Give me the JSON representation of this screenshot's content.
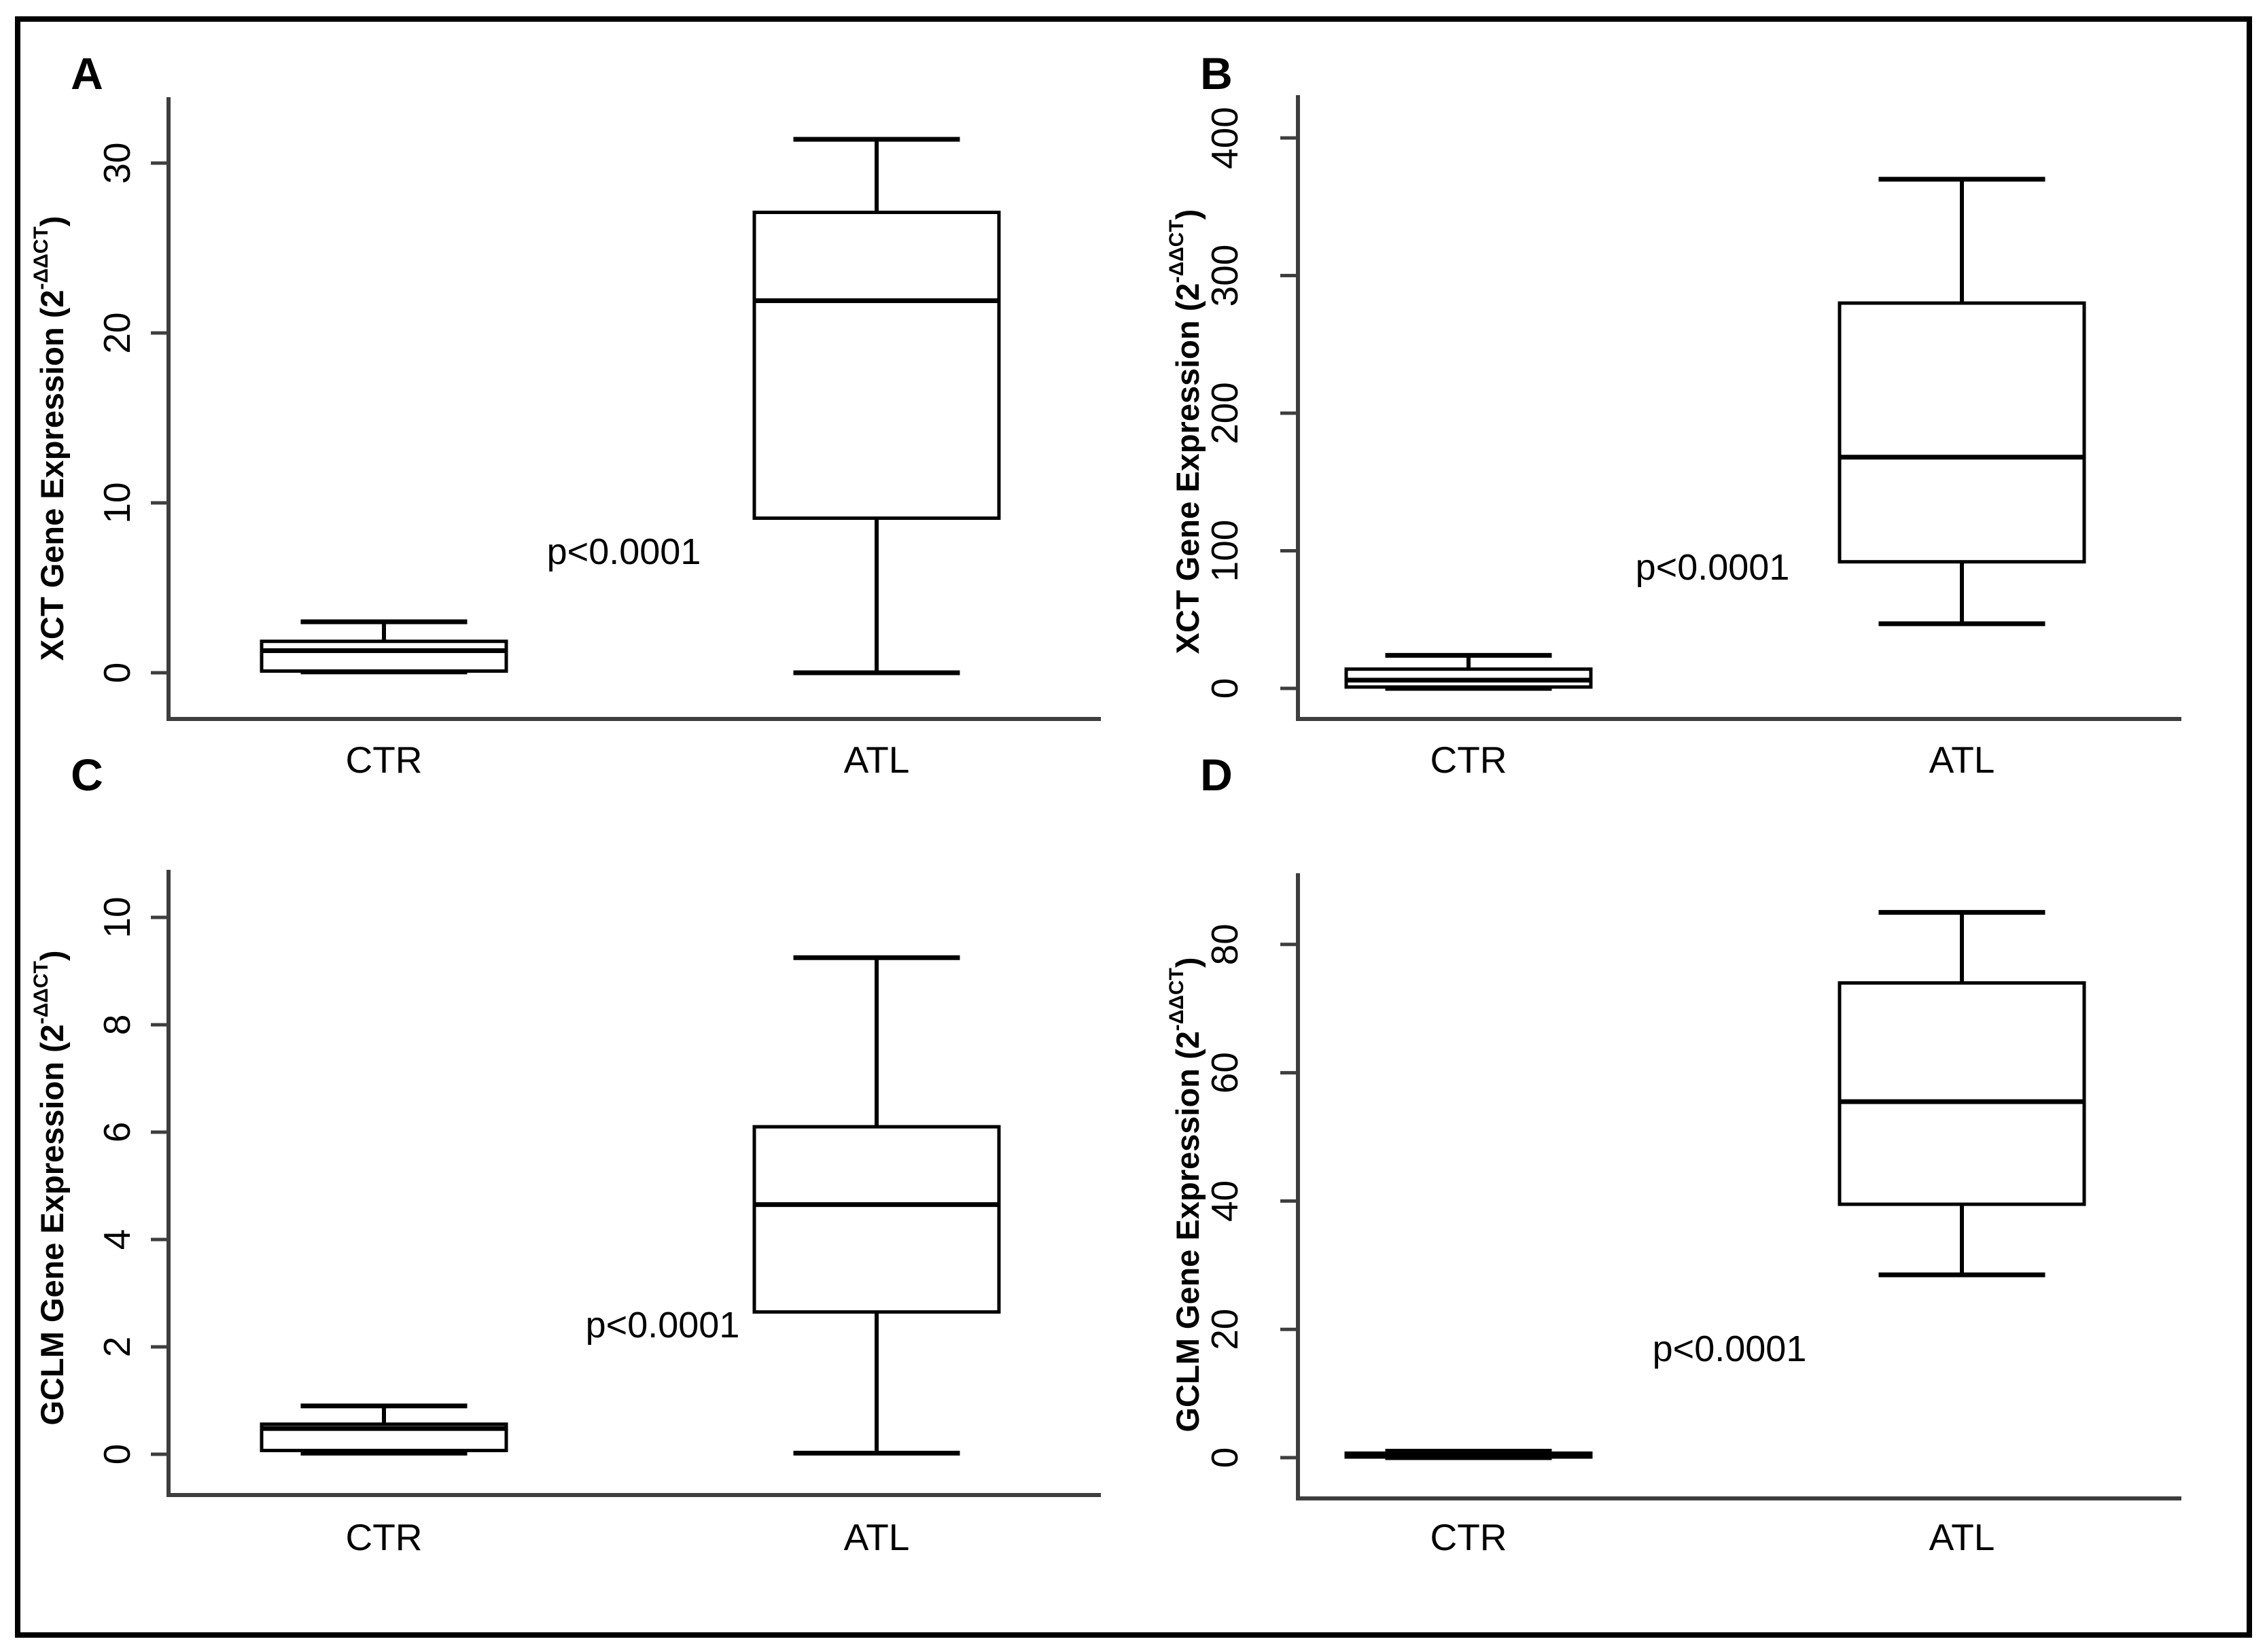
{
  "figure": {
    "background": "#ffffff",
    "border_color": "#000000",
    "axis_color": "#3e3e3e",
    "box_color": "#000000"
  },
  "chart_data": [
    {
      "type": "box",
      "panel": "A",
      "gene": "XCT",
      "ylabel": {
        "text": "XCT Gene Expression (2",
        "sup": "-ΔΔCT",
        "close": ")"
      },
      "categories": [
        "CTR",
        "ATL"
      ],
      "yticks": [
        0,
        10,
        20,
        30
      ],
      "ylim": [
        0,
        34
      ],
      "grid": false,
      "p_label": "p<0.0001",
      "series": [
        {
          "name": "CTR",
          "low": 0.05,
          "q1": 0.1,
          "median": 1.3,
          "q3": 1.85,
          "high": 3.0
        },
        {
          "name": "ATL",
          "low": 0.0,
          "q1": 9.1,
          "median": 21.9,
          "q3": 27.1,
          "high": 31.4
        }
      ]
    },
    {
      "type": "box",
      "panel": "B",
      "gene": "XCT",
      "ylabel": {
        "text": "XCT Gene Expression (2",
        "sup": "-ΔΔCT",
        "close": ")"
      },
      "categories": [
        "CTR",
        "ATL"
      ],
      "yticks": [
        0,
        100,
        200,
        300,
        400
      ],
      "ylim": [
        0,
        430
      ],
      "grid": false,
      "p_label": "p<0.0001",
      "series": [
        {
          "name": "CTR",
          "low": 0.0,
          "q1": 1.0,
          "median": 6.0,
          "q3": 14.0,
          "high": 24.0
        },
        {
          "name": "ATL",
          "low": 47.0,
          "q1": 92.0,
          "median": 168.0,
          "q3": 280.0,
          "high": 370.0
        }
      ]
    },
    {
      "type": "box",
      "panel": "C",
      "gene": "GCLM",
      "ylabel": {
        "text": "GCLM Gene Expression (2",
        "sup": "-ΔΔCT",
        "close": ")"
      },
      "categories": [
        "CTR",
        "ATL"
      ],
      "yticks": [
        0,
        2,
        4,
        6,
        8,
        10
      ],
      "ylim": [
        0,
        10.8
      ],
      "grid": false,
      "p_label": "p<0.0001",
      "series": [
        {
          "name": "CTR",
          "low": 0.02,
          "q1": 0.07,
          "median": 0.48,
          "q3": 0.56,
          "high": 0.9
        },
        {
          "name": "ATL",
          "low": 0.02,
          "q1": 2.65,
          "median": 4.65,
          "q3": 6.1,
          "high": 9.25
        }
      ]
    },
    {
      "type": "box",
      "panel": "D",
      "gene": "GCLM",
      "ylabel": {
        "text": "GCLM Gene Expression (2",
        "sup": "-ΔΔCT",
        "close": ")"
      },
      "categories": [
        "CTR",
        "ATL"
      ],
      "yticks": [
        0,
        20,
        40,
        60,
        80
      ],
      "ylim": [
        0,
        91
      ],
      "grid": false,
      "p_label": "p<0.0001",
      "series": [
        {
          "name": "CTR",
          "low": 0.0,
          "q1": 0.1,
          "median": 0.4,
          "q3": 0.7,
          "high": 1.0
        },
        {
          "name": "ATL",
          "low": 28.5,
          "q1": 39.5,
          "median": 55.5,
          "q3": 74.0,
          "high": 85.0
        }
      ]
    }
  ]
}
